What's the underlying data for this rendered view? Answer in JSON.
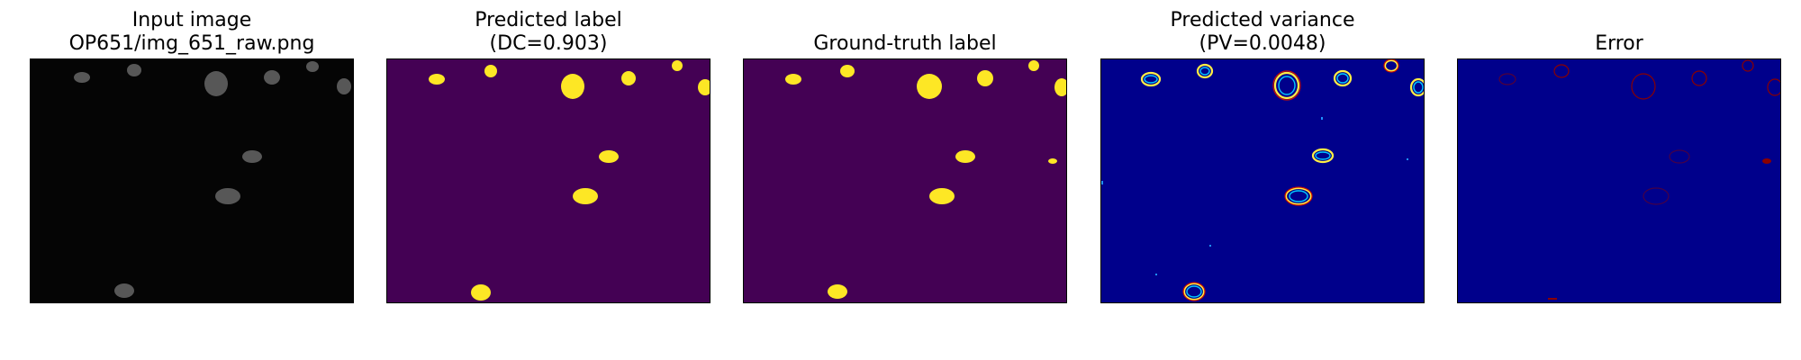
{
  "figure": {
    "panels": [
      {
        "id": "input",
        "title_lines": [
          "Input image",
          "OP651/img_651_raw.png"
        ]
      },
      {
        "id": "predicted",
        "title_lines": [
          "Predicted label",
          "(DC=0.903)"
        ]
      },
      {
        "id": "groundtruth",
        "title_lines": [
          "Ground-truth label"
        ]
      },
      {
        "id": "variance",
        "title_lines": [
          "Predicted variance",
          "(PV=0.0048)"
        ]
      },
      {
        "id": "error",
        "title_lines": [
          "Error"
        ]
      }
    ]
  },
  "colors": {
    "input_bg": "#050505",
    "label_bg": "#440154",
    "label_fg": "#fde725",
    "variance_bg": "#00008b",
    "error_bg": "#00008b",
    "error_fg": "#8b0000"
  }
}
